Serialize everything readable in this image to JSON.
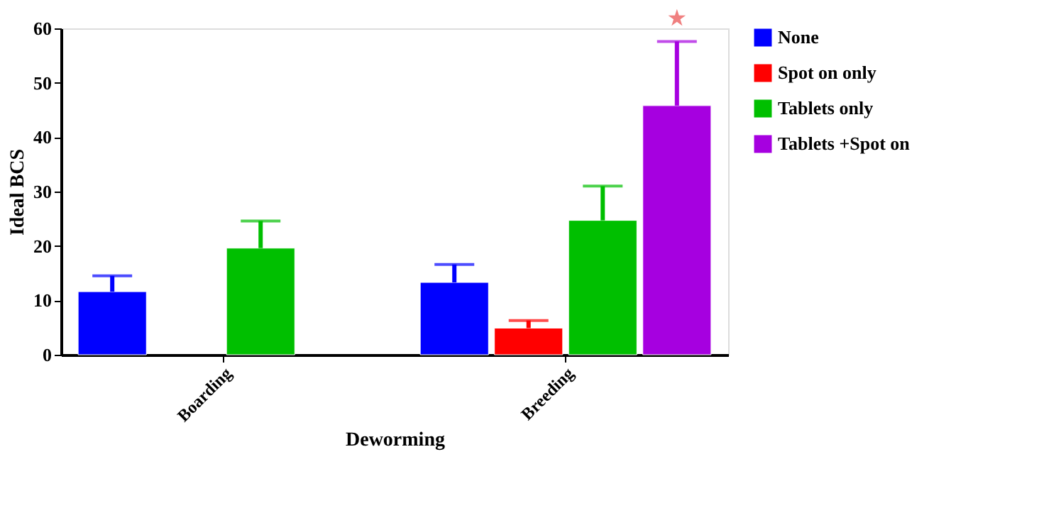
{
  "chart_data": {
    "type": "bar",
    "xlabel": "Deworming",
    "ylabel": "Ideal BCS",
    "categories": [
      "Boarding",
      "Breeding"
    ],
    "series": [
      {
        "name": "None",
        "color": "#0000ff",
        "values": [
          11.6,
          13.3
        ],
        "errors": [
          [
            11.6,
            14.5
          ],
          [
            13.3,
            16.6
          ]
        ]
      },
      {
        "name": "Spot on only",
        "color": "#ff0000",
        "values": [
          null,
          4.9
        ],
        "errors": [
          null,
          [
            4.9,
            6.3
          ]
        ]
      },
      {
        "name": "Tablets only",
        "color": "#00bf00",
        "values": [
          19.6,
          24.7
        ],
        "errors": [
          [
            19.6,
            24.6
          ],
          [
            24.7,
            31.0
          ]
        ]
      },
      {
        "name": "Tablets +Spot on",
        "color": "#a600e0",
        "values": [
          null,
          45.8
        ],
        "errors": [
          null,
          [
            45.8,
            57.6
          ]
        ]
      }
    ],
    "ylim": [
      0,
      60
    ],
    "yticks": [
      0,
      10,
      20,
      30,
      40,
      50,
      60
    ],
    "grid": false,
    "legend": "right",
    "annotations": [
      "★"
    ]
  }
}
